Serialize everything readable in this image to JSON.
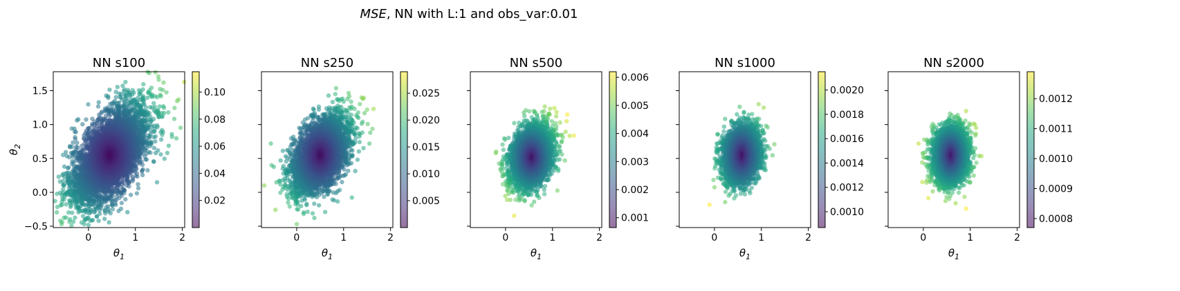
{
  "figure": {
    "suptitle_italic": "MSE",
    "suptitle_rest": ", NN with L:1 and obs_var:0.01"
  },
  "chart_data": [
    {
      "type": "scatter",
      "title": "NN s100",
      "xlabel": "θ1",
      "ylabel": "θ2",
      "xlim": [
        -0.75,
        2.05
      ],
      "ylim": [
        -0.52,
        1.78
      ],
      "x_ticks": [
        0,
        1,
        2
      ],
      "y_ticks": [
        -0.5,
        0.0,
        0.5,
        1.0,
        1.5
      ],
      "y_tick_labels": [
        "−0.5",
        "0.0",
        "0.5",
        "1.0",
        "1.5"
      ],
      "colormap": "viridis",
      "point_alpha": 0.55,
      "cluster": {
        "center": [
          0.45,
          0.55
        ],
        "spread": [
          0.42,
          0.38
        ],
        "correlation": 0.6,
        "n_points": 4000
      },
      "outliers": [
        [
          1.92,
          1.37
        ],
        [
          1.7,
          1.18
        ],
        [
          1.78,
          0.82
        ],
        [
          1.55,
          0.78
        ],
        [
          -0.6,
          -0.42
        ],
        [
          1.6,
          1.62
        ]
      ],
      "colorbar": {
        "min": 0.0,
        "max": 0.115,
        "ticks": [
          0.02,
          0.04,
          0.06,
          0.08,
          0.1
        ],
        "tick_labels": [
          "0.02",
          "0.04",
          "0.06",
          "0.08",
          "0.10"
        ]
      }
    },
    {
      "type": "scatter",
      "title": "NN s250",
      "xlabel": "θ1",
      "xlim": [
        -0.75,
        2.05
      ],
      "ylim": [
        -0.52,
        1.78
      ],
      "x_ticks": [
        0,
        1,
        2
      ],
      "colormap": "viridis",
      "point_alpha": 0.55,
      "cluster": {
        "center": [
          0.5,
          0.55
        ],
        "spread": [
          0.3,
          0.28
        ],
        "correlation": 0.5,
        "n_points": 4000
      },
      "outliers": [
        [
          -0.55,
          0.72
        ],
        [
          1.55,
          0.72
        ],
        [
          1.5,
          1.22
        ]
      ],
      "colorbar": {
        "min": 0.0,
        "max": 0.029,
        "ticks": [
          0.005,
          0.01,
          0.015,
          0.02,
          0.025
        ],
        "tick_labels": [
          "0.005",
          "0.010",
          "0.015",
          "0.020",
          "0.025"
        ]
      }
    },
    {
      "type": "scatter",
      "title": "NN s500",
      "xlabel": "θ1",
      "xlim": [
        -0.75,
        2.05
      ],
      "ylim": [
        -0.52,
        1.78
      ],
      "x_ticks": [
        0,
        1,
        2
      ],
      "colormap": "viridis",
      "point_alpha": 0.55,
      "cluster": {
        "center": [
          0.55,
          0.52
        ],
        "spread": [
          0.22,
          0.22
        ],
        "correlation": 0.3,
        "n_points": 4000
      },
      "outliers": [
        [
          -0.2,
          0.6
        ],
        [
          1.3,
          1.05
        ]
      ],
      "colorbar": {
        "min": 0.00065,
        "max": 0.0062,
        "ticks": [
          0.001,
          0.002,
          0.003,
          0.004,
          0.005,
          0.006
        ],
        "tick_labels": [
          "0.001",
          "0.002",
          "0.003",
          "0.004",
          "0.005",
          "0.006"
        ]
      }
    },
    {
      "type": "scatter",
      "title": "NN s1000",
      "xlabel": "θ1",
      "xlim": [
        -0.75,
        2.05
      ],
      "ylim": [
        -0.52,
        1.78
      ],
      "x_ticks": [
        0,
        1,
        2
      ],
      "colormap": "viridis",
      "point_alpha": 0.55,
      "cluster": {
        "center": [
          0.58,
          0.55
        ],
        "spread": [
          0.18,
          0.2
        ],
        "correlation": 0.2,
        "n_points": 4000
      },
      "outliers": [
        [
          0.05,
          0.72
        ],
        [
          1.05,
          1.25
        ]
      ],
      "colorbar": {
        "min": 0.00087,
        "max": 0.00215,
        "ticks": [
          0.001,
          0.0012,
          0.0014,
          0.0016,
          0.0018,
          0.002
        ],
        "tick_labels": [
          "0.0010",
          "0.0012",
          "0.0014",
          "0.0016",
          "0.0018",
          "0.0020"
        ]
      }
    },
    {
      "type": "scatter",
      "title": "NN s2000",
      "xlabel": "θ1",
      "xlim": [
        -0.75,
        2.05
      ],
      "ylim": [
        -0.52,
        1.78
      ],
      "x_ticks": [
        0,
        1,
        2
      ],
      "colormap": "viridis",
      "point_alpha": 0.55,
      "cluster": {
        "center": [
          0.58,
          0.55
        ],
        "spread": [
          0.18,
          0.2
        ],
        "correlation": 0.1,
        "n_points": 4000
      },
      "outliers": [
        [
          1.1,
          1.0
        ],
        [
          1.0,
          0.15
        ],
        [
          0.0,
          0.52
        ],
        [
          -0.1,
          0.72
        ]
      ],
      "colorbar": {
        "min": 0.00077,
        "max": 0.00129,
        "ticks": [
          0.0008,
          0.0009,
          0.001,
          0.0011,
          0.0012
        ],
        "tick_labels": [
          "0.0008",
          "0.0009",
          "0.0010",
          "0.0011",
          "0.0012"
        ]
      }
    }
  ]
}
